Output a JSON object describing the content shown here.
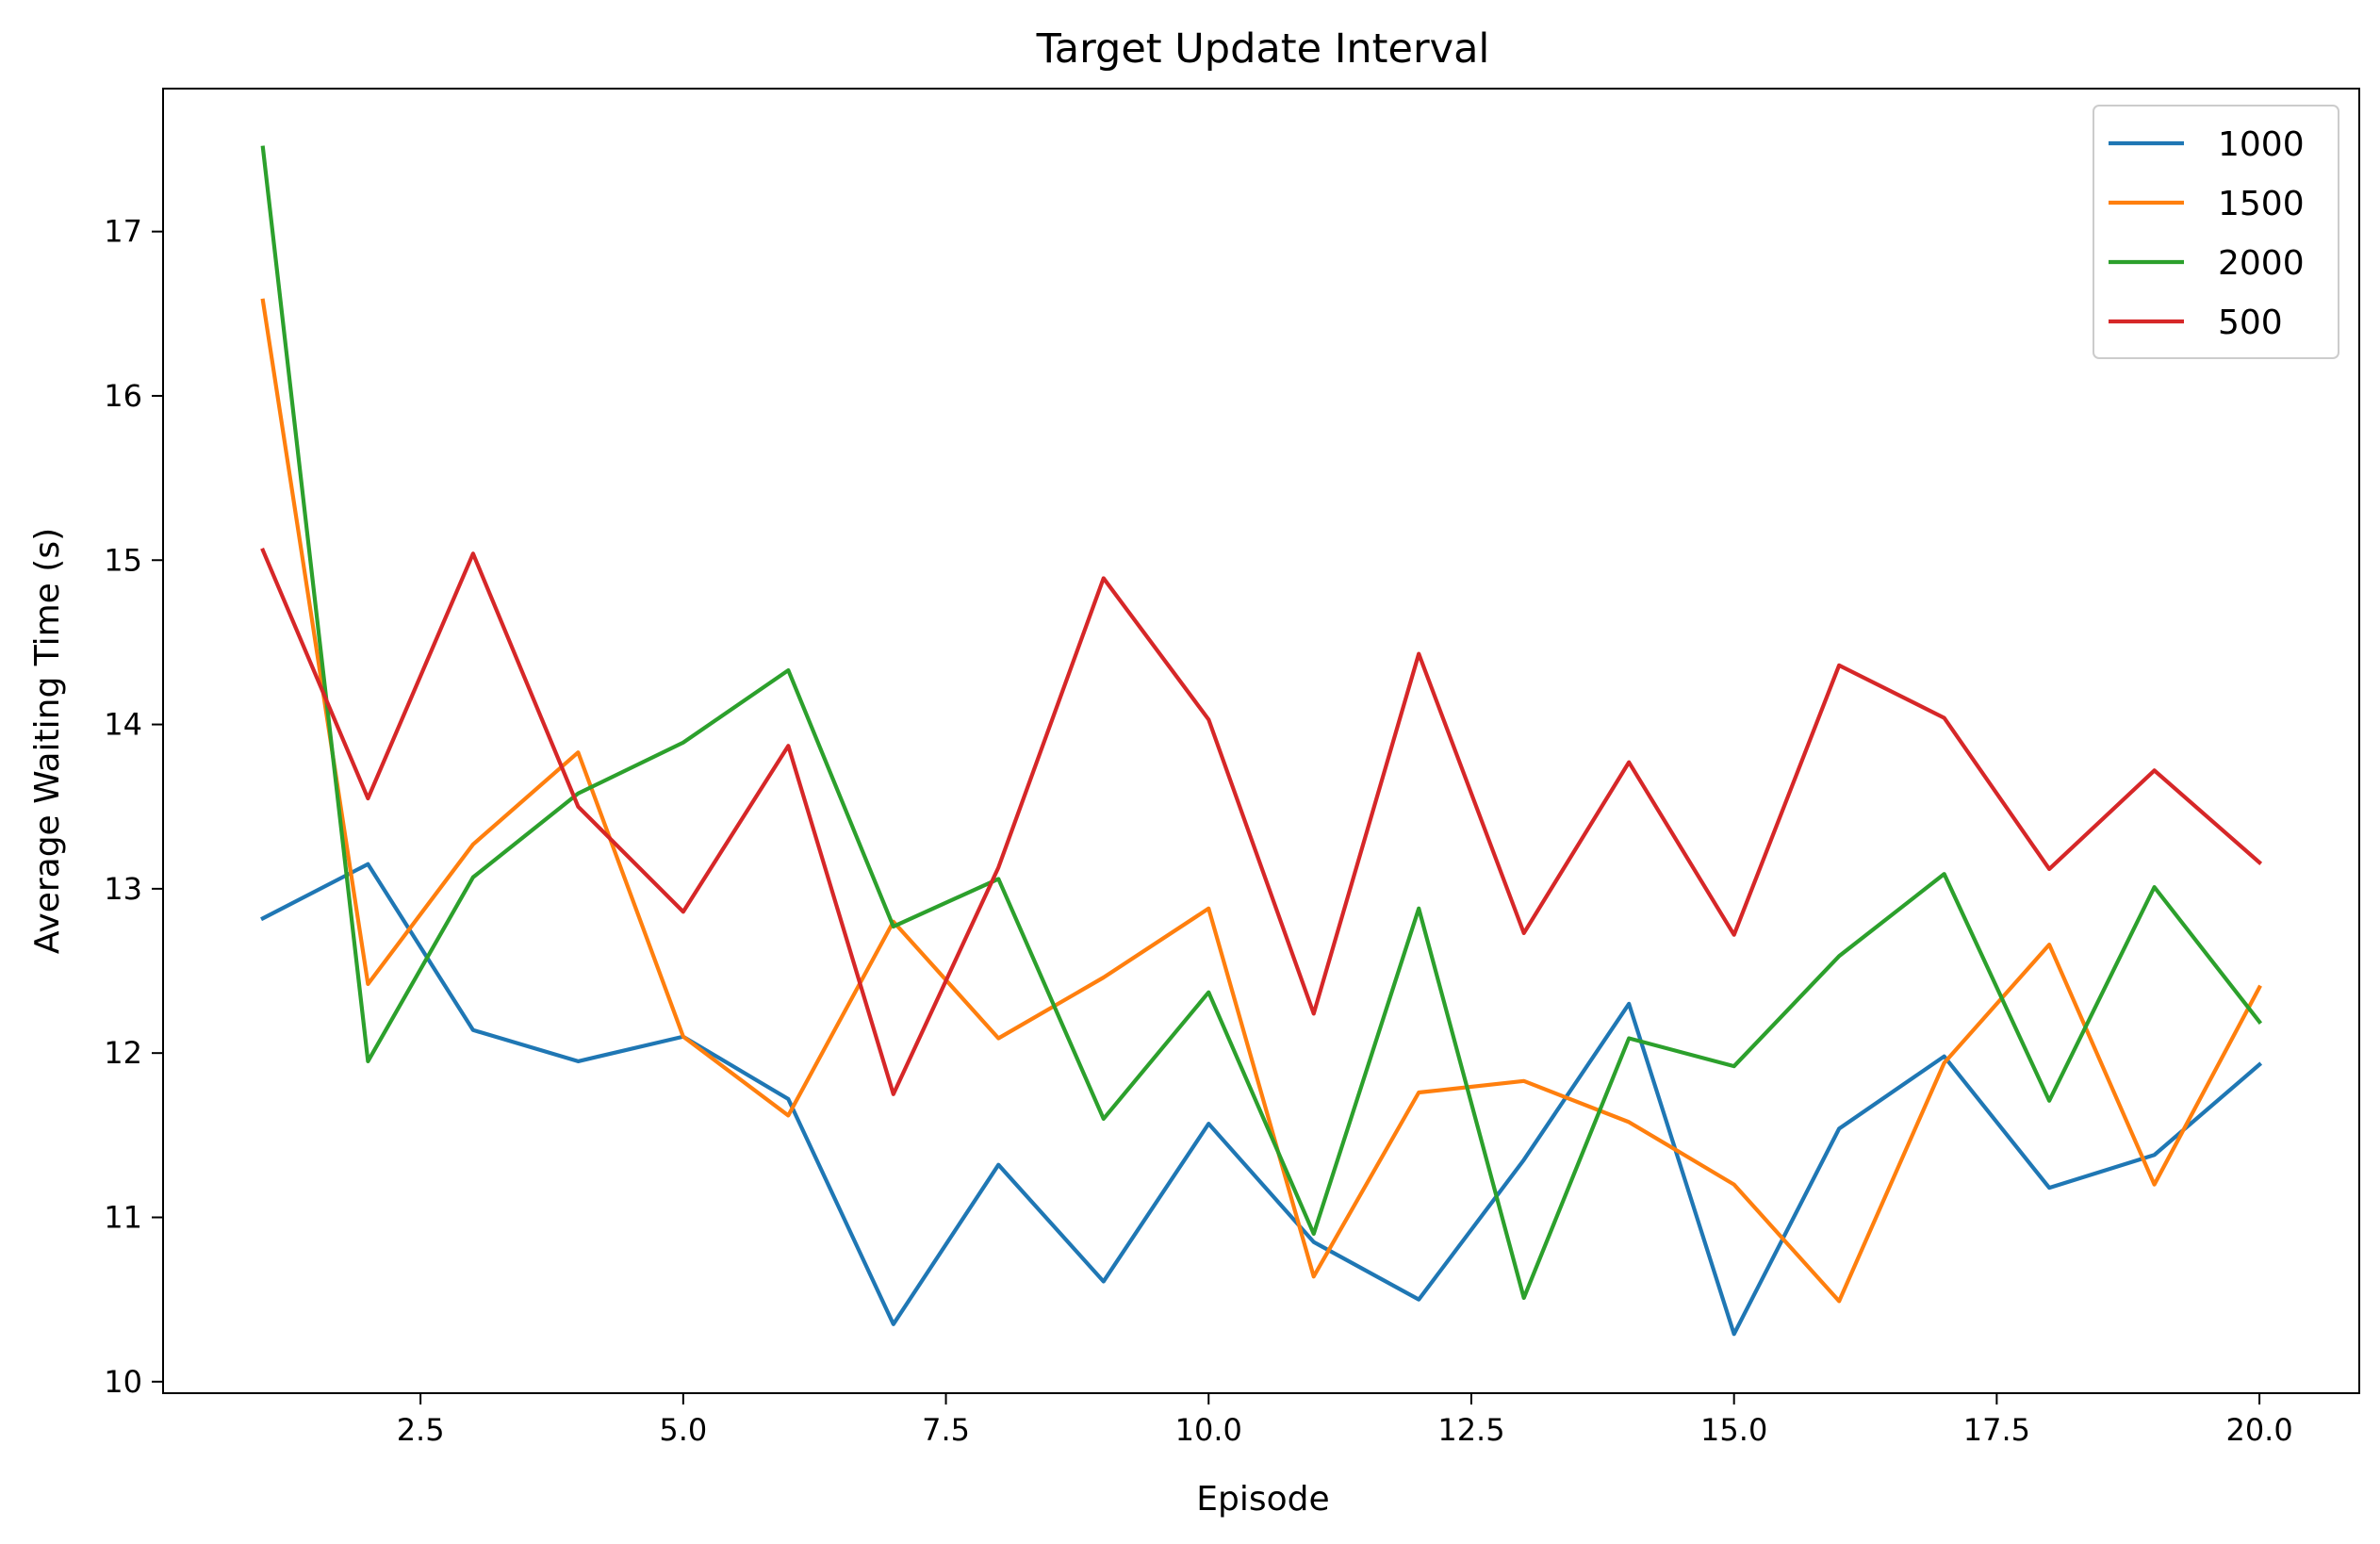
{
  "chart_data": {
    "type": "line",
    "title": "Target Update Interval",
    "xlabel": "Episode",
    "ylabel": "Average Waiting Time (s)",
    "xlim": [
      0.05,
      20.95
    ],
    "ylim": [
      9.93,
      17.87
    ],
    "xticks": [
      2.5,
      5.0,
      7.5,
      10.0,
      12.5,
      15.0,
      17.5,
      20.0
    ],
    "xtick_labels": [
      "2.5",
      "5.0",
      "7.5",
      "10.0",
      "12.5",
      "15.0",
      "17.5",
      "20.0"
    ],
    "yticks": [
      10,
      11,
      12,
      13,
      14,
      15,
      16,
      17
    ],
    "ytick_labels": [
      "10",
      "11",
      "12",
      "13",
      "14",
      "15",
      "16",
      "17"
    ],
    "grid": false,
    "legend_position": "top-right",
    "x": [
      1,
      2,
      3,
      4,
      5,
      6,
      7,
      8,
      9,
      10,
      11,
      12,
      13,
      14,
      15,
      16,
      17,
      18,
      19,
      20
    ],
    "series": [
      {
        "name": "1000",
        "color": "#1f77b4",
        "values": [
          12.82,
          13.15,
          12.14,
          11.95,
          12.1,
          11.72,
          10.35,
          11.32,
          10.61,
          11.57,
          10.85,
          10.5,
          11.35,
          12.3,
          10.29,
          11.54,
          11.98,
          11.18,
          11.38,
          11.93
        ]
      },
      {
        "name": "1500",
        "color": "#ff7f0e",
        "values": [
          16.58,
          12.42,
          13.27,
          13.83,
          12.1,
          11.62,
          12.8,
          12.09,
          12.46,
          12.88,
          10.64,
          11.76,
          11.83,
          11.58,
          11.2,
          10.49,
          11.94,
          12.66,
          11.2,
          12.4
        ]
      },
      {
        "name": "2000",
        "color": "#2ca02c",
        "values": [
          17.51,
          11.95,
          13.07,
          13.58,
          13.89,
          14.33,
          12.77,
          13.06,
          11.6,
          12.37,
          10.9,
          12.88,
          10.51,
          12.09,
          11.92,
          12.59,
          13.09,
          11.71,
          13.01,
          12.19
        ]
      },
      {
        "name": "500",
        "color": "#d62728",
        "values": [
          15.06,
          13.55,
          15.04,
          13.5,
          12.86,
          13.87,
          11.75,
          13.13,
          14.89,
          14.03,
          12.24,
          14.43,
          12.73,
          13.77,
          12.72,
          14.36,
          14.04,
          13.12,
          13.72,
          13.16
        ]
      }
    ]
  }
}
